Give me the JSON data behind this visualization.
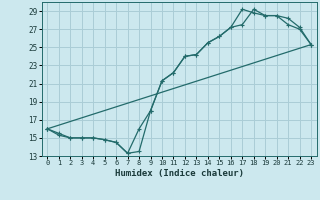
{
  "xlabel": "Humidex (Indice chaleur)",
  "xlim": [
    -0.5,
    23.5
  ],
  "ylim": [
    13,
    30
  ],
  "yticks": [
    13,
    15,
    17,
    19,
    21,
    23,
    25,
    27,
    29
  ],
  "xticks": [
    0,
    1,
    2,
    3,
    4,
    5,
    6,
    7,
    8,
    9,
    10,
    11,
    12,
    13,
    14,
    15,
    16,
    17,
    18,
    19,
    20,
    21,
    22,
    23
  ],
  "bg_color": "#cce8ee",
  "grid_color": "#aacdd6",
  "line_color": "#236b6b",
  "line1_x": [
    0,
    1,
    2,
    3,
    4,
    5,
    6,
    7,
    8,
    9,
    10,
    11,
    12,
    13,
    14,
    15,
    16,
    17,
    18,
    19,
    20,
    21,
    22,
    23
  ],
  "line1_y": [
    16,
    15.5,
    15,
    15,
    15,
    14.8,
    14.5,
    13.3,
    13.5,
    18.0,
    21.3,
    22.2,
    24.0,
    24.2,
    25.5,
    26.2,
    27.2,
    27.5,
    29.2,
    28.5,
    28.5,
    28.2,
    27.2,
    25.3
  ],
  "line2_x": [
    0,
    1,
    2,
    3,
    4,
    5,
    6,
    7,
    8,
    9,
    10,
    11,
    12,
    13,
    14,
    15,
    16,
    17,
    18,
    19,
    20,
    21,
    22,
    23
  ],
  "line2_y": [
    16,
    15.3,
    15,
    15,
    15,
    14.8,
    14.5,
    13.3,
    16.0,
    18.0,
    21.3,
    22.2,
    24.0,
    24.2,
    25.5,
    26.2,
    27.2,
    29.2,
    28.8,
    28.5,
    28.5,
    27.5,
    27.0,
    25.3
  ],
  "line3_x": [
    0,
    23
  ],
  "line3_y": [
    16,
    25.3
  ]
}
